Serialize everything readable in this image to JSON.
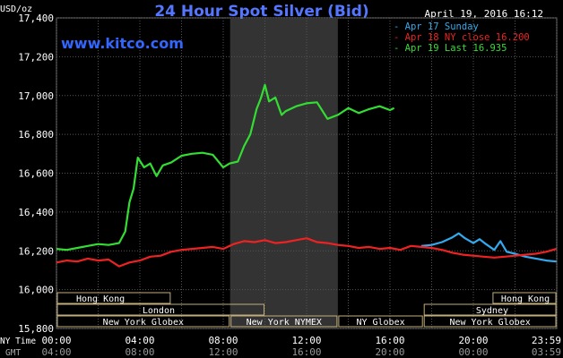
{
  "header": {
    "title": "24 Hour Spot Silver (Bid)",
    "date": "April 19, 2016 16:12",
    "unit": "USD/oz",
    "site": "www.kitco.com"
  },
  "legend": [
    {
      "text": "Apr 17 Sunday",
      "color": "#33aaee"
    },
    {
      "text": "Apr 18 NY close 16.200",
      "color": "#ee2222"
    },
    {
      "text": "Apr 19 Last 16.935",
      "color": "#33dd33"
    }
  ],
  "axis": {
    "y_ticks": [
      "17,400",
      "17,200",
      "17,000",
      "16,800",
      "16,600",
      "16,400",
      "16,200",
      "16,000",
      "15,800"
    ],
    "x_row1_label": "NY Time",
    "x_row2_label": "GMT",
    "x_ticks_ny": [
      "00:00",
      "04:00",
      "08:00",
      "12:00",
      "16:00",
      "20:00",
      "23:59"
    ],
    "x_ticks_gmt": [
      "04:00",
      "08:00",
      "12:00",
      "16:00",
      "20:00",
      "00:00",
      "03:59"
    ]
  },
  "sessions": {
    "row1": [
      {
        "label": "Hong Kong"
      },
      {
        "label": "Hong Kong"
      }
    ],
    "row2": [
      {
        "label": "London"
      },
      {
        "label": "Sydney"
      }
    ],
    "row3": [
      {
        "label": "New York Globex"
      },
      {
        "label": "New York NYMEX"
      },
      {
        "label": "NY Globex"
      },
      {
        "label": "New York Globex"
      }
    ]
  },
  "chart_data": {
    "type": "line",
    "title": "24 Hour Spot Silver (Bid)",
    "ylabel": "USD/oz",
    "ylim": [
      15800,
      17400
    ],
    "xlim_hours": [
      0,
      24
    ],
    "grid": true,
    "legend_position": "top-right",
    "series": [
      {
        "name": "Apr 17 Sunday",
        "color": "#33aaee",
        "points": [
          [
            17.5,
            16225
          ],
          [
            18,
            16230
          ],
          [
            18.5,
            16245
          ],
          [
            19,
            16270
          ],
          [
            19.3,
            16290
          ],
          [
            19.6,
            16265
          ],
          [
            20,
            16240
          ],
          [
            20.3,
            16260
          ],
          [
            20.6,
            16235
          ],
          [
            21,
            16205
          ],
          [
            21.3,
            16250
          ],
          [
            21.6,
            16195
          ],
          [
            22,
            16185
          ],
          [
            22.5,
            16170
          ],
          [
            23,
            16160
          ],
          [
            23.5,
            16150
          ],
          [
            23.98,
            16145
          ]
        ]
      },
      {
        "name": "Apr 18 NY close 16.200",
        "color": "#ee2222",
        "points": [
          [
            0,
            16140
          ],
          [
            0.5,
            16150
          ],
          [
            1,
            16145
          ],
          [
            1.5,
            16160
          ],
          [
            2,
            16150
          ],
          [
            2.5,
            16155
          ],
          [
            3,
            16120
          ],
          [
            3.5,
            16140
          ],
          [
            4,
            16150
          ],
          [
            4.5,
            16170
          ],
          [
            5,
            16175
          ],
          [
            5.5,
            16195
          ],
          [
            6,
            16205
          ],
          [
            6.5,
            16210
          ],
          [
            7,
            16215
          ],
          [
            7.5,
            16220
          ],
          [
            8,
            16210
          ],
          [
            8.5,
            16235
          ],
          [
            9,
            16250
          ],
          [
            9.5,
            16245
          ],
          [
            10,
            16255
          ],
          [
            10.5,
            16240
          ],
          [
            11,
            16245
          ],
          [
            11.5,
            16255
          ],
          [
            12,
            16265
          ],
          [
            12.5,
            16245
          ],
          [
            13,
            16240
          ],
          [
            13.5,
            16230
          ],
          [
            14,
            16225
          ],
          [
            14.5,
            16215
          ],
          [
            15,
            16220
          ],
          [
            15.5,
            16210
          ],
          [
            16,
            16215
          ],
          [
            16.5,
            16205
          ],
          [
            17,
            16225
          ],
          [
            17.5,
            16220
          ],
          [
            18,
            16215
          ],
          [
            18.5,
            16205
          ],
          [
            19,
            16190
          ],
          [
            19.5,
            16180
          ],
          [
            20,
            16175
          ],
          [
            20.5,
            16170
          ],
          [
            21,
            16165
          ],
          [
            21.5,
            16170
          ],
          [
            22,
            16175
          ],
          [
            22.5,
            16180
          ],
          [
            23,
            16185
          ],
          [
            23.5,
            16195
          ],
          [
            23.98,
            16210
          ]
        ]
      },
      {
        "name": "Apr 19 Last 16.935",
        "color": "#33dd33",
        "points": [
          [
            0,
            16210
          ],
          [
            0.5,
            16205
          ],
          [
            1,
            16215
          ],
          [
            1.5,
            16225
          ],
          [
            2,
            16235
          ],
          [
            2.5,
            16230
          ],
          [
            3,
            16240
          ],
          [
            3.3,
            16300
          ],
          [
            3.5,
            16450
          ],
          [
            3.7,
            16520
          ],
          [
            3.9,
            16680
          ],
          [
            4.2,
            16630
          ],
          [
            4.5,
            16650
          ],
          [
            4.8,
            16585
          ],
          [
            5.1,
            16640
          ],
          [
            5.5,
            16655
          ],
          [
            6,
            16690
          ],
          [
            6.5,
            16700
          ],
          [
            7,
            16705
          ],
          [
            7.5,
            16695
          ],
          [
            8,
            16630
          ],
          [
            8.3,
            16650
          ],
          [
            8.7,
            16660
          ],
          [
            9,
            16740
          ],
          [
            9.3,
            16800
          ],
          [
            9.6,
            16930
          ],
          [
            9.8,
            16985
          ],
          [
            10,
            17055
          ],
          [
            10.2,
            16970
          ],
          [
            10.5,
            16990
          ],
          [
            10.8,
            16900
          ],
          [
            11,
            16920
          ],
          [
            11.5,
            16945
          ],
          [
            12,
            16960
          ],
          [
            12.5,
            16965
          ],
          [
            13,
            16880
          ],
          [
            13.5,
            16900
          ],
          [
            14,
            16935
          ],
          [
            14.5,
            16910
          ],
          [
            15,
            16930
          ],
          [
            15.5,
            16945
          ],
          [
            16,
            16925
          ],
          [
            16.2,
            16935
          ]
        ]
      }
    ]
  }
}
